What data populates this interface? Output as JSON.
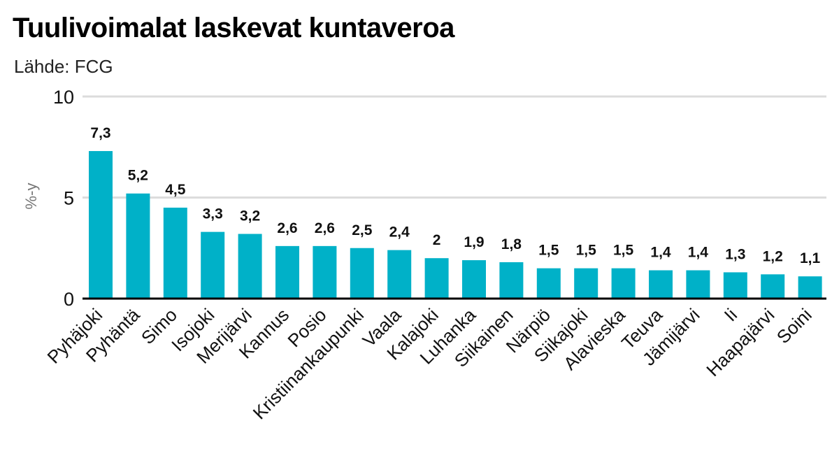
{
  "chart_data": {
    "type": "bar",
    "title": "Tuulivoimalat laskevat kuntaveroa",
    "subtitle": "Lähde: FCG",
    "ylabel": "%-y",
    "xlabel": "",
    "ylim": [
      0,
      10
    ],
    "yticks": [
      0,
      5,
      10
    ],
    "grid": true,
    "bar_color": "#00b1c8",
    "categories": [
      "Pyhäjoki",
      "Pyhäntä",
      "Simo",
      "Isojoki",
      "Merijärvi",
      "Kannus",
      "Posio",
      "Kristiinankaupunki",
      "Vaala",
      "Kalajoki",
      "Luhanka",
      "Siikainen",
      "Närpiö",
      "Siikajoki",
      "Alavieska",
      "Teuva",
      "Jämijärvi",
      "Ii",
      "Haapajärvi",
      "Soini"
    ],
    "values": [
      7.3,
      5.2,
      4.5,
      3.3,
      3.2,
      2.6,
      2.6,
      2.5,
      2.4,
      2,
      1.9,
      1.8,
      1.5,
      1.5,
      1.5,
      1.4,
      1.4,
      1.3,
      1.2,
      1.1
    ],
    "value_labels": [
      "7,3",
      "5,2",
      "4,5",
      "3,3",
      "3,2",
      "2,6",
      "2,6",
      "2,5",
      "2,4",
      "2",
      "1,9",
      "1,8",
      "1,5",
      "1,5",
      "1,5",
      "1,4",
      "1,4",
      "1,3",
      "1,2",
      "1,1"
    ]
  }
}
